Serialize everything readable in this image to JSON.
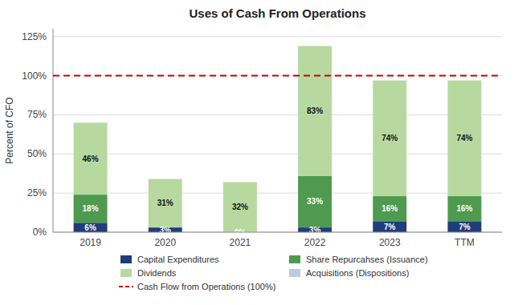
{
  "chart_data": {
    "type": "bar",
    "stacked": true,
    "title": "Uses of Cash From Operations",
    "y_label": "Percent of CFO",
    "categories": [
      "2019",
      "2020",
      "2021",
      "2022",
      "2023",
      "TTM"
    ],
    "series": [
      {
        "name": "Capital Expenditures",
        "color": "#1f3d7a",
        "values": [
          6,
          3,
          0,
          3,
          7,
          7
        ],
        "value_labels": [
          "6%",
          "3%",
          "0%",
          "3%",
          "7%",
          "7%"
        ]
      },
      {
        "name": "Share Repurcahses (Issuance)",
        "color": "#4e9a4e",
        "values": [
          18,
          0,
          0,
          33,
          16,
          16
        ],
        "value_labels": [
          "18%",
          null,
          null,
          "33%",
          "16%",
          "16%"
        ]
      },
      {
        "name": "Dividends",
        "color": "#b7d9a0",
        "values": [
          46,
          31,
          32,
          83,
          74,
          74
        ],
        "value_labels": [
          "46%",
          "31%",
          "32%",
          "83%",
          "74%",
          "74%"
        ]
      },
      {
        "name": "Acquisitions (Dispositions)",
        "color": "#b8cce4",
        "values": [
          0,
          0,
          0,
          0,
          0,
          0
        ],
        "value_labels": [
          null,
          null,
          null,
          null,
          null,
          null
        ]
      }
    ],
    "annotations": [
      {
        "type": "hline",
        "value": 100,
        "label": "Cash Flow from Operations (100%)",
        "color": "#cc0000",
        "line_style": "dashed"
      }
    ],
    "ylim": [
      0,
      130
    ],
    "yticks": [
      {
        "value": 0,
        "label": "0%"
      },
      {
        "value": 25,
        "label": "25%"
      },
      {
        "value": 50,
        "label": "50%"
      },
      {
        "value": 75,
        "label": "75%"
      },
      {
        "value": 100,
        "label": "100%"
      },
      {
        "value": 125,
        "label": "125%"
      }
    ],
    "grid": true,
    "data_labels": true,
    "legend": "bottom"
  }
}
